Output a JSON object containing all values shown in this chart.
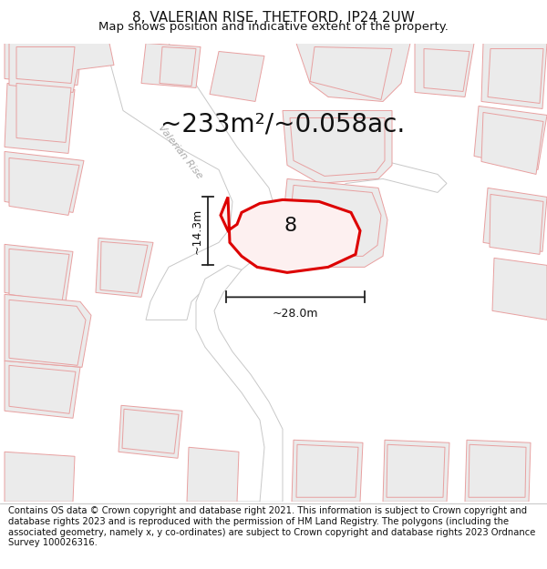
{
  "title": "8, VALERIAN RISE, THETFORD, IP24 2UW",
  "subtitle": "Map shows position and indicative extent of the property.",
  "area_text": "~233m²/~0.058ac.",
  "label_8": "8",
  "dim_width": "~28.0m",
  "dim_height": "~14.3m",
  "footer": "Contains OS data © Crown copyright and database right 2021. This information is subject to Crown copyright and database rights 2023 and is reproduced with the permission of HM Land Registry. The polygons (including the associated geometry, namely x, y co-ordinates) are subject to Crown copyright and database rights 2023 Ordnance Survey 100026316.",
  "bg_color": "#ffffff",
  "map_bg": "#f7f5f5",
  "plot_color_fill": "#fdf0f0",
  "plot_color_edge": "#dd0000",
  "neighbor_fill": "#ebebeb",
  "neighbor_edge": "#e8a0a0",
  "road_fill": "#ffffff",
  "road_edge": "#c8c8c8",
  "road_label_color": "#aaaaaa",
  "title_fontsize": 11,
  "subtitle_fontsize": 9.5,
  "area_fontsize": 20,
  "label_fontsize": 16,
  "dim_fontsize": 9,
  "footer_fontsize": 7.2
}
